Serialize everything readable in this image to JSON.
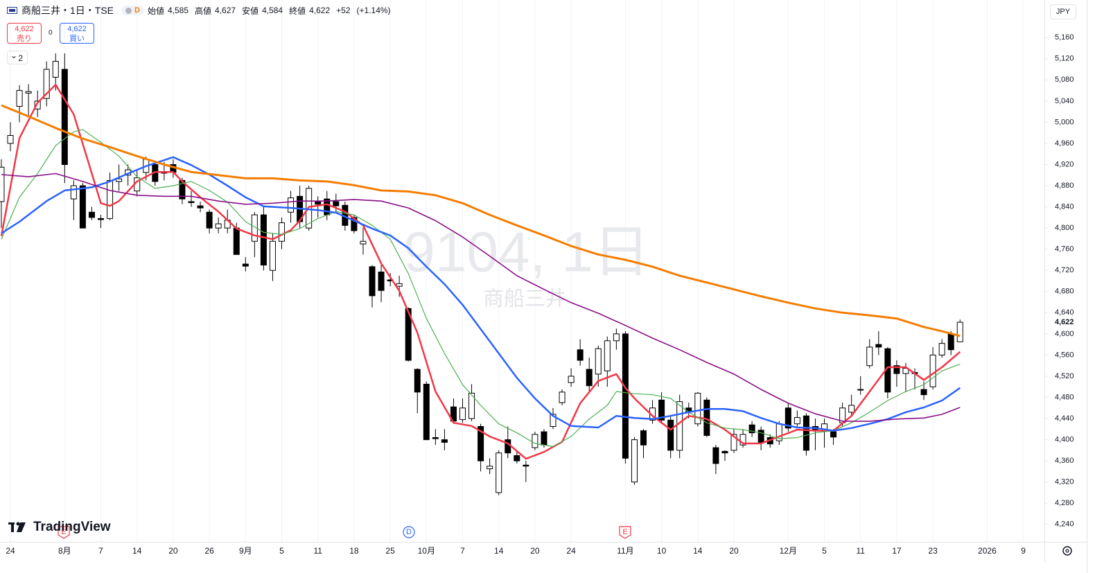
{
  "header": {
    "symbol": "商船三井・1日・TSE",
    "interval_badge": "D",
    "open_label": "始値",
    "open": "4,585",
    "high_label": "高値",
    "high": "4,627",
    "low_label": "安値",
    "low": "4,584",
    "close_label": "終値",
    "close": "4,622",
    "change": "+52",
    "change_pct": "(+1.14%)"
  },
  "trade": {
    "sell_price": "4,622",
    "sell_label": "売り",
    "spread": "0",
    "buy_price": "4,622",
    "buy_label": "買い"
  },
  "indicators_toggle": "2",
  "currency": "JPY",
  "logo": "TradingView",
  "watermark": {
    "line1": "9104, 1日",
    "line2": "商船三井"
  },
  "events": [
    "E",
    "D",
    "E"
  ],
  "chart_data": {
    "type": "candlestick",
    "categories": [
      null,
      "24",
      null,
      null,
      null,
      null,
      null,
      "8月",
      null,
      null,
      null,
      "7",
      null,
      null,
      null,
      "14",
      null,
      null,
      null,
      "20",
      null,
      null,
      null,
      "26",
      null,
      null,
      null,
      "9月",
      null,
      null,
      null,
      "5",
      null,
      null,
      null,
      "11",
      null,
      null,
      null,
      "18",
      null,
      null,
      null,
      "25",
      null,
      null,
      null,
      "10月",
      null,
      null,
      null,
      "7",
      null,
      null,
      null,
      "14",
      null,
      null,
      null,
      "20",
      null,
      null,
      null,
      "24",
      null,
      null,
      null,
      null,
      null,
      "11月",
      null,
      null,
      null,
      "10",
      null,
      null,
      null,
      "14",
      null,
      null,
      null,
      "20",
      null,
      null,
      null,
      null,
      null,
      "12月",
      null,
      null,
      null,
      "5",
      null,
      null,
      null,
      "11",
      null,
      null,
      null,
      "17",
      null,
      null,
      null,
      "23",
      null,
      null,
      null,
      null,
      null,
      "2026",
      null,
      null,
      null,
      "9"
    ],
    "open": [
      4850,
      4960,
      5030,
      5055,
      5025,
      5045,
      5085,
      5100,
      4855,
      4880,
      4830,
      4818,
      4818,
      4888,
      4900,
      4870,
      4905,
      4920,
      4905,
      4920,
      4890,
      4850,
      4842,
      4830,
      4800,
      4800,
      4800,
      4732,
      4775,
      4825,
      4720,
      4775,
      4830,
      4860,
      4800,
      4850,
      4855,
      4850,
      4843,
      4820,
      4770,
      4727,
      4717,
      4702,
      4690,
      4648,
      4533,
      4505,
      4404,
      4400,
      4462,
      4438,
      4440,
      4425,
      4345,
      4300,
      4400,
      4370,
      4352,
      4385,
      4415,
      4425,
      4470,
      4508,
      4570,
      4533,
      4524,
      4530,
      4587,
      4600,
      4320,
      4417,
      4437,
      4475,
      4437,
      4380,
      4460,
      4430,
      4475,
      4385,
      4378,
      4380,
      4390,
      4428,
      4418,
      4404,
      4398,
      4460,
      4430,
      4445,
      4425,
      4420,
      4415,
      4432,
      4452,
      4494,
      4540,
      4580,
      4572,
      4540,
      4525,
      4527,
      4495,
      4500,
      4560,
      4600,
      4585,
      null,
      null,
      null,
      null,
      null,
      null,
      null
    ],
    "high": [
      4930,
      5000,
      5070,
      5072,
      5060,
      5115,
      5130,
      5130,
      4890,
      4885,
      4840,
      4825,
      4905,
      4920,
      4920,
      4910,
      4935,
      4925,
      4925,
      4930,
      4895,
      4870,
      4850,
      4835,
      4820,
      4835,
      4810,
      4745,
      4830,
      4840,
      4790,
      4820,
      4870,
      4880,
      4880,
      4860,
      4870,
      4865,
      4850,
      4825,
      4800,
      4730,
      4730,
      4715,
      4710,
      4650,
      4535,
      4510,
      4420,
      4420,
      4478,
      4478,
      4505,
      4430,
      4365,
      4380,
      4425,
      4380,
      4360,
      4415,
      4420,
      4460,
      4495,
      4535,
      4590,
      4555,
      4578,
      4595,
      4610,
      4605,
      4405,
      4420,
      4475,
      4490,
      4445,
      4485,
      4470,
      4490,
      4480,
      4390,
      4380,
      4420,
      4420,
      4435,
      4425,
      4410,
      4435,
      4470,
      4455,
      4450,
      4440,
      4440,
      4420,
      4470,
      4485,
      4520,
      4590,
      4605,
      4575,
      4550,
      4545,
      4535,
      4510,
      4575,
      4590,
      4605,
      4627,
      null,
      null,
      null,
      null,
      null,
      null,
      null
    ],
    "low": [
      4800,
      4945,
      5000,
      5010,
      5010,
      5030,
      5060,
      4885,
      4815,
      4800,
      4815,
      4800,
      4815,
      4870,
      4880,
      4860,
      4890,
      4880,
      4890,
      4895,
      4845,
      4840,
      4830,
      4790,
      4790,
      4790,
      4750,
      4718,
      4745,
      4720,
      4700,
      4760,
      4810,
      4800,
      4795,
      4820,
      4815,
      4830,
      4795,
      4790,
      4750,
      4650,
      4660,
      4690,
      4670,
      4548,
      4450,
      4400,
      4390,
      4380,
      4430,
      4432,
      4435,
      4340,
      4335,
      4295,
      4365,
      4355,
      4320,
      4380,
      4385,
      4420,
      4465,
      4500,
      4540,
      4490,
      4500,
      4500,
      4570,
      4355,
      4315,
      4365,
      4430,
      4430,
      4365,
      4365,
      4440,
      4425,
      4405,
      4335,
      4360,
      4375,
      4385,
      4405,
      4380,
      4385,
      4390,
      4415,
      4425,
      4370,
      4380,
      4385,
      4390,
      4425,
      4445,
      4485,
      4535,
      4560,
      4478,
      4500,
      4490,
      4495,
      4475,
      4495,
      4555,
      4560,
      4584,
      null,
      null,
      null,
      null,
      null,
      null,
      null
    ],
    "close": [
      4915,
      4975,
      5060,
      5058,
      5040,
      5100,
      5115,
      4920,
      4880,
      4800,
      4820,
      4816,
      4890,
      4893,
      4910,
      4895,
      4930,
      4888,
      4905,
      4905,
      4855,
      4848,
      4838,
      4800,
      4808,
      4815,
      4750,
      4728,
      4825,
      4730,
      4775,
      4810,
      4857,
      4812,
      4875,
      4845,
      4825,
      4842,
      4805,
      4795,
      4775,
      4672,
      4682,
      4700,
      4695,
      4550,
      4490,
      4400,
      4402,
      4395,
      4435,
      4460,
      4488,
      4360,
      4350,
      4375,
      4375,
      4360,
      4350,
      4410,
      4390,
      4448,
      4490,
      4520,
      4550,
      4502,
      4572,
      4587,
      4600,
      4365,
      4400,
      4390,
      4460,
      4437,
      4380,
      4472,
      4453,
      4488,
      4408,
      4355,
      4375,
      4410,
      4410,
      4413,
      4395,
      4392,
      4430,
      4422,
      4442,
      4380,
      4418,
      4430,
      4405,
      4460,
      4465,
      4495,
      4575,
      4575,
      4490,
      4525,
      4535,
      4525,
      4485,
      4560,
      4582,
      4570,
      4622,
      null,
      null,
      null,
      null,
      null,
      null,
      null
    ],
    "up_color": "#ffffff",
    "down_color": "#000000",
    "overlays": [
      {
        "color": "#f23645",
        "x": [
          0,
          2,
          4,
          6,
          8,
          10,
          11,
          12,
          13,
          15,
          17,
          19,
          20,
          22,
          24,
          26,
          28,
          30,
          32,
          33,
          34,
          36,
          38,
          40,
          42,
          44,
          46,
          48,
          50,
          52,
          54,
          56,
          58,
          60,
          62,
          64,
          66,
          68,
          69,
          70,
          72,
          74,
          76,
          78,
          80,
          82,
          84,
          86,
          88,
          90,
          92,
          94,
          96,
          98,
          100,
          102,
          104,
          106
        ],
        "values": [
          4785,
          4970,
          5037,
          5071,
          5015,
          4903,
          4847,
          4842,
          4851,
          4888,
          4906,
          4906,
          4888,
          4858,
          4831,
          4799,
          4786,
          4779,
          4796,
          4814,
          4840,
          4845,
          4831,
          4805,
          4733,
          4681,
          4602,
          4491,
          4432,
          4426,
          4406,
          4393,
          4364,
          4377,
          4396,
          4469,
          4511,
          4524,
          4498,
          4478,
          4445,
          4419,
          4445,
          4439,
          4419,
          4393,
          4393,
          4406,
          4419,
          4417,
          4417,
          4445,
          4491,
          4537,
          4537,
          4513,
          4537,
          4566
        ]
      },
      {
        "color": "#4caf50",
        "x": [
          0,
          2,
          4,
          6,
          8,
          9,
          11,
          13,
          15,
          17,
          19,
          21,
          23,
          25,
          27,
          29,
          31,
          33,
          35,
          37,
          39,
          41,
          43,
          45,
          47,
          49,
          51,
          53,
          55,
          57,
          59,
          61,
          63,
          65,
          67,
          68,
          70,
          72,
          74,
          76,
          78,
          80,
          82,
          84,
          86,
          88,
          90,
          92,
          94,
          96,
          98,
          100,
          102,
          104,
          106
        ],
        "values": [
          4779,
          4858,
          4903,
          4956,
          4982,
          4986,
          4962,
          4936,
          4897,
          4875,
          4880,
          4888,
          4871,
          4849,
          4812,
          4792,
          4788,
          4799,
          4818,
          4831,
          4825,
          4805,
          4779,
          4714,
          4629,
          4563,
          4504,
          4465,
          4430,
          4413,
          4393,
          4387,
          4406,
          4439,
          4465,
          4491,
          4487,
          4485,
          4478,
          4452,
          4432,
          4422,
          4419,
          4413,
          4402,
          4404,
          4413,
          4417,
          4432,
          4452,
          4474,
          4491,
          4504,
          4530,
          4543
        ]
      },
      {
        "color": "#2962ff",
        "x": [
          0,
          2,
          5,
          7,
          10,
          12,
          14,
          16,
          19,
          21,
          23,
          25,
          27,
          29,
          32,
          35,
          37,
          39,
          41,
          43,
          45,
          47,
          49,
          51,
          53,
          55,
          57,
          59,
          61,
          63,
          66,
          68,
          70,
          72,
          74,
          76,
          78,
          80,
          82,
          84,
          86,
          88,
          90,
          92,
          94,
          96,
          98,
          100,
          102,
          104,
          106
        ],
        "values": [
          4790,
          4812,
          4851,
          4871,
          4877,
          4888,
          4903,
          4917,
          4934,
          4919,
          4901,
          4880,
          4858,
          4841,
          4838,
          4834,
          4829,
          4814,
          4799,
          4786,
          4762,
          4727,
          4694,
          4655,
          4609,
          4563,
          4517,
          4478,
          4445,
          4426,
          4423,
          4445,
          4441,
          4439,
          4445,
          4452,
          4458,
          4458,
          4454,
          4441,
          4430,
          4423,
          4422,
          4417,
          4422,
          4430,
          4439,
          4452,
          4461,
          4474,
          4498
        ]
      },
      {
        "color": "#880e88",
        "x": [
          0,
          3,
          6,
          9,
          12,
          15,
          18,
          21,
          24,
          27,
          30,
          33,
          36,
          39,
          42,
          45,
          48,
          51,
          54,
          57,
          60,
          63,
          66,
          69,
          72,
          75,
          78,
          81,
          84,
          87,
          90,
          93,
          96,
          99,
          102,
          104,
          106
        ],
        "values": [
          4901,
          4897,
          4903,
          4888,
          4871,
          4862,
          4860,
          4860,
          4851,
          4845,
          4847,
          4851,
          4851,
          4854,
          4851,
          4838,
          4814,
          4783,
          4747,
          4710,
          4684,
          4659,
          4639,
          4616,
          4592,
          4570,
          4546,
          4524,
          4495,
          4469,
          4449,
          4435,
          4435,
          4439,
          4441,
          4448,
          4461
        ]
      },
      {
        "color": "#f57c00",
        "x": [
          0,
          3,
          6,
          9,
          12,
          15,
          18,
          21,
          24,
          27,
          30,
          33,
          36,
          39,
          42,
          45,
          48,
          51,
          54,
          57,
          60,
          63,
          66,
          69,
          72,
          75,
          78,
          81,
          84,
          87,
          90,
          93,
          96,
          99,
          102,
          104,
          106
        ],
        "values": [
          5032,
          5011,
          4989,
          4969,
          4953,
          4936,
          4920,
          4906,
          4900,
          4894,
          4894,
          4890,
          4888,
          4881,
          4871,
          4869,
          4862,
          4847,
          4825,
          4805,
          4786,
          4766,
          4750,
          4740,
          4727,
          4710,
          4697,
          4684,
          4671,
          4659,
          4648,
          4640,
          4635,
          4629,
          4613,
          4605,
          4596
        ]
      }
    ],
    "ylim": [
      4207,
      5231
    ],
    "yticks": [
      {
        "value": 5160,
        "label": "5,160"
      },
      {
        "value": 5120,
        "label": "5,120"
      },
      {
        "value": 5080,
        "label": "5,080"
      },
      {
        "value": 5040,
        "label": "5,040"
      },
      {
        "value": 5000,
        "label": "5,000"
      },
      {
        "value": 4960,
        "label": "4,960"
      },
      {
        "value": 4920,
        "label": "4,920"
      },
      {
        "value": 4880,
        "label": "4,880"
      },
      {
        "value": 4840,
        "label": "4,840"
      },
      {
        "value": 4800,
        "label": "4,800"
      },
      {
        "value": 4760,
        "label": "4,760"
      },
      {
        "value": 4720,
        "label": "4,720"
      },
      {
        "value": 4680,
        "label": "4,680"
      },
      {
        "value": 4640,
        "label": "4,640"
      },
      {
        "value": 4600,
        "label": "4,600"
      },
      {
        "value": 4560,
        "label": "4,560"
      },
      {
        "value": 4520,
        "label": "4,520"
      },
      {
        "value": 4480,
        "label": "4,480"
      },
      {
        "value": 4440,
        "label": "4,440"
      },
      {
        "value": 4400,
        "label": "4,400"
      },
      {
        "value": 4360,
        "label": "4,360"
      },
      {
        "value": 4320,
        "label": "4,320"
      },
      {
        "value": 4280,
        "label": "4,280"
      },
      {
        "value": 4240,
        "label": "4,240"
      }
    ],
    "last_price": {
      "value": 4622,
      "label": "4,622"
    },
    "grid": true
  }
}
